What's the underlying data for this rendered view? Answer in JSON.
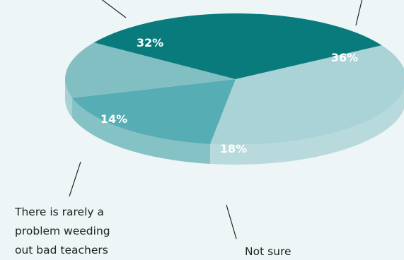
{
  "chart_data": {
    "type": "pie",
    "style": "3d-exploded-tilted",
    "slices": [
      {
        "label": "",
        "value": 32,
        "value_label": "32%",
        "color": "#0a7b7d",
        "side_color": "#086b6d"
      },
      {
        "label": "",
        "value": 36,
        "value_label": "36%",
        "color": "#a9d3d6",
        "side_color": "#b9dadd"
      },
      {
        "label": "Not sure",
        "value": 18,
        "value_label": "18%",
        "color": "#56adb3",
        "side_color": "#85c2c6"
      },
      {
        "label": "There is rarely a problem weeding out bad teachers",
        "value": 14,
        "value_label": "14%",
        "color": "#82bfc2",
        "side_color": "#a7d2d5"
      }
    ]
  },
  "labels": {
    "rarely_problem_line1": "There is rarely a",
    "rarely_problem_line2": "problem weeding",
    "rarely_problem_line3": "out bad teachers",
    "not_sure": "Not sure"
  },
  "colors": {
    "background": "#eef5f6",
    "text": "#222222"
  }
}
